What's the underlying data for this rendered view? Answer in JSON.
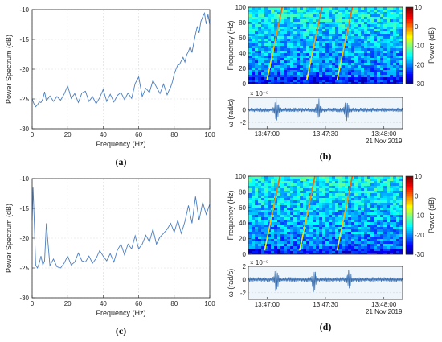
{
  "chart_data": [
    {
      "id": "a",
      "type": "line",
      "panel_label": "(a)",
      "xlabel": "Frequency (Hz)",
      "ylabel": "Power Spectrum (dB)",
      "xlim": [
        0,
        100
      ],
      "ylim": [
        -30,
        -10
      ],
      "xticks": [
        "0",
        "20",
        "40",
        "60",
        "80",
        "100"
      ],
      "yticks": [
        "-10",
        "-15",
        "-20",
        "-25",
        "-30"
      ],
      "grid": true,
      "series": [
        {
          "color": "#4a7fc1",
          "x": [
            0,
            1,
            2,
            3,
            4,
            5,
            6,
            7,
            8,
            10,
            12,
            14,
            16,
            18,
            20,
            22,
            24,
            26,
            28,
            30,
            32,
            34,
            36,
            38,
            40,
            42,
            44,
            46,
            48,
            50,
            52,
            54,
            56,
            58,
            60,
            62,
            64,
            66,
            68,
            70,
            72,
            74,
            76,
            77,
            78,
            79,
            80,
            81,
            82,
            83,
            84,
            85,
            86,
            87,
            88,
            89,
            90,
            91,
            92,
            93,
            94,
            95,
            96,
            97,
            98,
            99,
            100
          ],
          "y": [
            -25.0,
            -25.8,
            -26.3,
            -26.0,
            -25.5,
            -25.6,
            -25.0,
            -23.8,
            -25.3,
            -24.5,
            -25.4,
            -24.6,
            -25.2,
            -24.2,
            -22.8,
            -24.9,
            -24.1,
            -25.6,
            -24.0,
            -23.7,
            -25.4,
            -24.6,
            -25.8,
            -24.8,
            -23.4,
            -25.4,
            -24.2,
            -25.5,
            -24.4,
            -23.9,
            -25.1,
            -24.0,
            -24.9,
            -22.4,
            -21.3,
            -24.6,
            -23.2,
            -23.9,
            -21.9,
            -23.0,
            -24.1,
            -22.5,
            -24.3,
            -23.6,
            -23.0,
            -22.1,
            -20.8,
            -20.0,
            -19.3,
            -19.2,
            -18.6,
            -18.0,
            -18.8,
            -17.6,
            -17.0,
            -16.2,
            -17.2,
            -15.6,
            -14.1,
            -12.8,
            -13.9,
            -12.0,
            -11.2,
            -10.6,
            -12.4,
            -10.8,
            -12.5
          ]
        }
      ]
    },
    {
      "id": "b",
      "type": "heatmap",
      "panel_label": "(b)",
      "ylabel": "Frequency (Hz)",
      "ylim": [
        0,
        100
      ],
      "yticks": [
        "0",
        "20",
        "40",
        "60",
        "80",
        "100"
      ],
      "colorbar_label": "Power (dB)",
      "colorbar_range": [
        -30,
        10
      ],
      "colorbar_ticks": [
        "10",
        "0",
        "-10",
        "-20",
        "-30"
      ],
      "sweep_starts_s": [
        8,
        25,
        38
      ]
    },
    {
      "id": "b-signal",
      "type": "line",
      "ylabel": "ω (rad/s)",
      "exponent_label": "× 10⁻⁵",
      "ylim": [
        -3,
        2
      ],
      "yticks": [
        "0",
        "-2"
      ],
      "xticks": [
        "13:47:00",
        "13:47:30",
        "13:48:00"
      ],
      "date_label": "21 Nov 2019",
      "grid": true,
      "bursts_s": [
        12,
        30,
        42
      ]
    },
    {
      "id": "c",
      "type": "line",
      "panel_label": "(c)",
      "xlabel": "Frequency (Hz)",
      "ylabel": "Power Spectrum (dB)",
      "xlim": [
        0,
        100
      ],
      "ylim": [
        -30,
        -10
      ],
      "xticks": [
        "0",
        "20",
        "40",
        "60",
        "80",
        "100"
      ],
      "yticks": [
        "-10",
        "-15",
        "-20",
        "-25",
        "-30"
      ],
      "grid": true,
      "series": [
        {
          "color": "#4a7fc1",
          "x": [
            0,
            0.5,
            1,
            2,
            3,
            4,
            5,
            6,
            7,
            8,
            10,
            12,
            14,
            16,
            18,
            20,
            22,
            24,
            26,
            28,
            30,
            32,
            34,
            36,
            38,
            40,
            42,
            44,
            46,
            48,
            50,
            52,
            54,
            56,
            58,
            60,
            62,
            64,
            66,
            68,
            70,
            72,
            74,
            76,
            78,
            80,
            82,
            84,
            86,
            88,
            90,
            92,
            94,
            96,
            98,
            100
          ],
          "y": [
            -17.0,
            -11.5,
            -15.5,
            -24.5,
            -25.0,
            -24.2,
            -23.0,
            -24.5,
            -23.8,
            -17.5,
            -24.6,
            -23.5,
            -24.8,
            -25.0,
            -24.2,
            -23.0,
            -24.5,
            -24.0,
            -22.5,
            -23.8,
            -24.0,
            -23.0,
            -24.2,
            -23.4,
            -22.1,
            -23.0,
            -23.8,
            -22.6,
            -24.0,
            -22.0,
            -21.0,
            -22.8,
            -21.0,
            -21.8,
            -19.6,
            -21.8,
            -21.0,
            -19.5,
            -20.6,
            -18.5,
            -21.0,
            -19.8,
            -19.2,
            -18.5,
            -17.5,
            -19.0,
            -17.0,
            -19.2,
            -17.2,
            -14.5,
            -17.5,
            -13.0,
            -17.0,
            -14.0,
            -16.0,
            -14.3
          ]
        }
      ]
    },
    {
      "id": "d",
      "type": "heatmap",
      "panel_label": "(d)",
      "ylabel": "Frequency (Hz)",
      "ylim": [
        0,
        100
      ],
      "yticks": [
        "0",
        "20",
        "40",
        "60",
        "80",
        "100"
      ],
      "colorbar_label": "Power (dB)",
      "colorbar_range": [
        -30,
        10
      ],
      "colorbar_ticks": [
        "10",
        "0",
        "-10",
        "-20",
        "-30"
      ],
      "sweep_starts_s": [
        7,
        22,
        38
      ]
    },
    {
      "id": "d-signal",
      "type": "line",
      "ylabel": "ω (rad/s)",
      "exponent_label": "× 10⁻⁵",
      "ylim": [
        -3,
        2
      ],
      "yticks": [
        "2",
        "0",
        "-2"
      ],
      "xticks": [
        "13:47:00",
        "13:47:30",
        "13:48:00"
      ],
      "date_label": "21 Nov 2019",
      "grid": true,
      "bursts_s": [
        12,
        28,
        43
      ]
    }
  ]
}
